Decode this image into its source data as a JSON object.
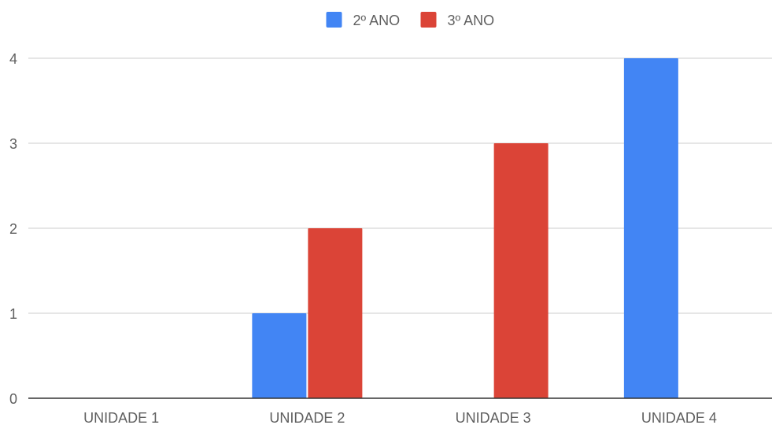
{
  "chart_data": {
    "type": "bar",
    "categories": [
      "UNIDADE 1",
      "UNIDADE 2",
      "UNIDADE 3",
      "UNIDADE 4"
    ],
    "series": [
      {
        "name": "2º ANO",
        "color": "#4285f4",
        "values": [
          0,
          1,
          0,
          4
        ]
      },
      {
        "name": "3º ANO",
        "color": "#db4437",
        "values": [
          0,
          2,
          3,
          0
        ]
      }
    ],
    "yticks": [
      "0",
      "1",
      "2",
      "3",
      "4"
    ],
    "ylim": [
      0,
      4
    ],
    "grid": true,
    "legend": "top-center"
  }
}
